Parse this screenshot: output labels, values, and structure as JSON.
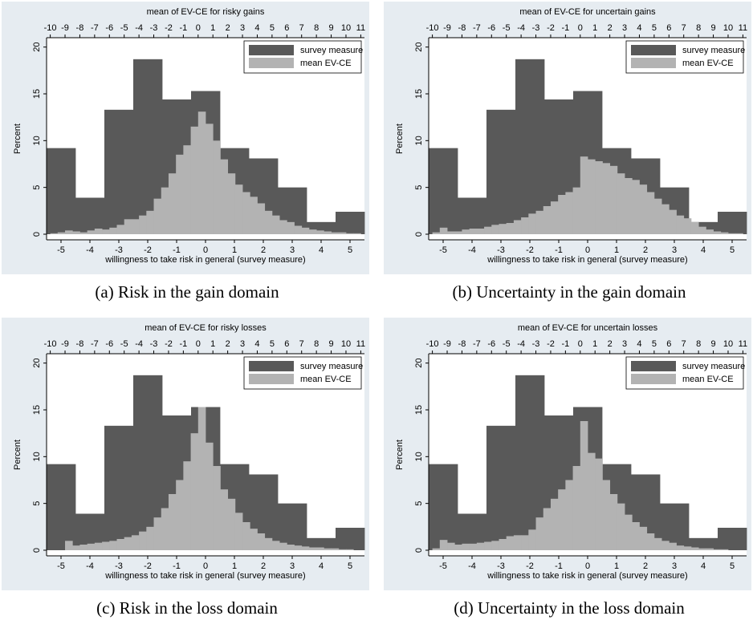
{
  "chart_data": [
    {
      "type": "histogram",
      "caption": "(a) Risk in the gain domain",
      "x2label": "mean of EV-CE for risky gains",
      "xlabel": "willingness to take risk in general (survey measure)",
      "ylabel": "Percent",
      "xlim": [
        -5.5,
        5.5
      ],
      "xticks": [
        -5,
        -4,
        -3,
        -2,
        -1,
        0,
        1,
        2,
        3,
        4,
        5
      ],
      "x2lim": [
        -10.25,
        11.25
      ],
      "x2ticks": [
        -10,
        -9,
        -8,
        -7,
        -6,
        -5,
        -4,
        -3,
        -2,
        -1,
        0,
        1,
        2,
        3,
        4,
        5,
        6,
        7,
        8,
        9,
        10,
        11
      ],
      "ylim": [
        -0.6,
        21
      ],
      "yticks": [
        0,
        5,
        10,
        15,
        20
      ],
      "legend": "top-right",
      "series": [
        {
          "name": "survey measure",
          "color": "#595959",
          "bins": [
            -5.5,
            -4.5,
            -3.5,
            -2.5,
            -1.5,
            -0.5,
            0.5,
            1.5,
            2.5,
            3.5,
            4.5,
            5.5
          ],
          "values": [
            9.2,
            3.9,
            13.3,
            18.7,
            14.4,
            15.3,
            9.2,
            8.1,
            5.0,
            1.3,
            2.4
          ]
        },
        {
          "name": "mean EV-CE",
          "color": "#b3b3b3",
          "axis": "x2",
          "bins": [
            -10,
            -9.5,
            -9,
            -8.5,
            -8,
            -7.5,
            -7,
            -6.5,
            -6,
            -5.5,
            -5,
            -4.5,
            -4,
            -3.5,
            -3,
            -2.5,
            -2,
            -1.5,
            -1,
            -0.5,
            0,
            0.5,
            1,
            1.5,
            2,
            2.5,
            3,
            3.5,
            4,
            4.5,
            5,
            5.5,
            6,
            6.5,
            7,
            7.5,
            8,
            8.5,
            9,
            9.5,
            10,
            10.5,
            11
          ],
          "values": [
            0.1,
            0.2,
            0.4,
            0.3,
            0.2,
            0.4,
            0.6,
            0.5,
            0.7,
            1.0,
            1.6,
            1.6,
            2.0,
            2.5,
            3.8,
            5.0,
            6.5,
            8.5,
            9.5,
            11.5,
            13.1,
            11.8,
            10.0,
            8.0,
            6.5,
            5.3,
            4.5,
            4.0,
            3.3,
            2.5,
            2.0,
            1.5,
            1.3,
            0.9,
            0.7,
            0.5,
            0.4,
            0.3,
            0.2,
            0.2,
            0.1,
            0.1
          ]
        }
      ]
    },
    {
      "type": "histogram",
      "caption": "(b) Uncertainty in the gain domain",
      "x2label": "mean of EV-CE for uncertain gains",
      "xlabel": "willingness to take risk in general (survey measure)",
      "ylabel": "Percent",
      "xlim": [
        -5.5,
        5.5
      ],
      "xticks": [
        -5,
        -4,
        -3,
        -2,
        -1,
        0,
        1,
        2,
        3,
        4,
        5
      ],
      "x2lim": [
        -10.25,
        11.25
      ],
      "x2ticks": [
        -10,
        -9,
        -8,
        -7,
        -6,
        -5,
        -4,
        -3,
        -2,
        -1,
        0,
        1,
        2,
        3,
        4,
        5,
        6,
        7,
        8,
        9,
        10,
        11
      ],
      "ylim": [
        -0.6,
        21
      ],
      "yticks": [
        0,
        5,
        10,
        15,
        20
      ],
      "legend": "top-right",
      "series": [
        {
          "name": "survey measure",
          "color": "#595959",
          "bins": [
            -5.5,
            -4.5,
            -3.5,
            -2.5,
            -1.5,
            -0.5,
            0.5,
            1.5,
            2.5,
            3.5,
            4.5,
            5.5
          ],
          "values": [
            9.2,
            3.9,
            13.3,
            18.7,
            14.4,
            15.3,
            9.2,
            8.1,
            5.0,
            1.3,
            2.4
          ]
        },
        {
          "name": "mean EV-CE",
          "color": "#b3b3b3",
          "axis": "x2",
          "bins": [
            -10,
            -9.5,
            -9,
            -8.5,
            -8,
            -7.5,
            -7,
            -6.5,
            -6,
            -5.5,
            -5,
            -4.5,
            -4,
            -3.5,
            -3,
            -2.5,
            -2,
            -1.5,
            -1,
            -0.5,
            0,
            0.5,
            1,
            1.5,
            2,
            2.5,
            3,
            3.5,
            4,
            4.5,
            5,
            5.5,
            6,
            6.5,
            7,
            7.5,
            8,
            8.5,
            9,
            9.5,
            10,
            10.5,
            11
          ],
          "values": [
            0.2,
            0.7,
            0.3,
            0.3,
            0.5,
            0.6,
            0.6,
            0.8,
            1.0,
            1.1,
            1.2,
            1.5,
            1.8,
            2.2,
            2.5,
            3.0,
            3.5,
            4.2,
            4.5,
            5.0,
            8.3,
            8.0,
            7.8,
            7.6,
            7.3,
            6.5,
            6.0,
            5.8,
            5.3,
            4.5,
            3.8,
            3.2,
            2.6,
            2.0,
            1.7,
            1.3,
            0.8,
            0.5,
            0.3,
            0.2,
            0.1,
            0.1
          ]
        }
      ]
    },
    {
      "type": "histogram",
      "caption": "(c) Risk in the loss domain",
      "x2label": "mean of EV-CE for risky losses",
      "xlabel": "willingness to take risk in general (survey measure)",
      "ylabel": "Percent",
      "xlim": [
        -5.5,
        5.5
      ],
      "xticks": [
        -5,
        -4,
        -3,
        -2,
        -1,
        0,
        1,
        2,
        3,
        4,
        5
      ],
      "x2lim": [
        -10.25,
        11.25
      ],
      "x2ticks": [
        -10,
        -9,
        -8,
        -7,
        -6,
        -5,
        -4,
        -3,
        -2,
        -1,
        0,
        1,
        2,
        3,
        4,
        5,
        6,
        7,
        8,
        9,
        10,
        11
      ],
      "ylim": [
        -0.6,
        21
      ],
      "yticks": [
        0,
        5,
        10,
        15,
        20
      ],
      "legend": "top-right",
      "series": [
        {
          "name": "survey measure",
          "color": "#595959",
          "bins": [
            -5.5,
            -4.5,
            -3.5,
            -2.5,
            -1.5,
            -0.5,
            0.5,
            1.5,
            2.5,
            3.5,
            4.5,
            5.5
          ],
          "values": [
            9.2,
            3.9,
            13.3,
            18.7,
            14.4,
            15.3,
            9.2,
            8.1,
            5.0,
            1.3,
            2.4
          ]
        },
        {
          "name": "mean EV-CE",
          "color": "#b3b3b3",
          "axis": "x2",
          "bins": [
            -10,
            -9.5,
            -9,
            -8.5,
            -8,
            -7.5,
            -7,
            -6.5,
            -6,
            -5.5,
            -5,
            -4.5,
            -4,
            -3.5,
            -3,
            -2.5,
            -2,
            -1.5,
            -1,
            -0.5,
            0,
            0.5,
            1,
            1.5,
            2,
            2.5,
            3,
            3.5,
            4,
            4.5,
            5,
            5.5,
            6,
            6.5,
            7,
            7.5,
            8,
            8.5,
            9,
            9.5,
            10,
            10.5,
            11
          ],
          "values": [
            0,
            0,
            1.0,
            0.5,
            0.6,
            0.7,
            0.8,
            0.9,
            1.0,
            1.2,
            1.4,
            1.6,
            2.0,
            2.5,
            3.5,
            4.5,
            6.0,
            7.5,
            9.5,
            12.5,
            15.3,
            11.5,
            9.0,
            6.5,
            5.5,
            4.0,
            3.0,
            2.3,
            1.8,
            1.3,
            1.0,
            0.8,
            0.6,
            0.5,
            0.4,
            0.3,
            0.3,
            0.2,
            0.2,
            0.1,
            0.1,
            0
          ]
        }
      ]
    },
    {
      "type": "histogram",
      "caption": "(d) Uncertainty in the loss domain",
      "x2label": "mean of EV-CE for uncertain losses",
      "xlabel": "willingness to take risk in general (survey measure)",
      "ylabel": "Percent",
      "xlim": [
        -5.5,
        5.5
      ],
      "xticks": [
        -5,
        -4,
        -3,
        -2,
        -1,
        0,
        1,
        2,
        3,
        4,
        5
      ],
      "x2lim": [
        -10.25,
        11.25
      ],
      "x2ticks": [
        -10,
        -9,
        -8,
        -7,
        -6,
        -5,
        -4,
        -3,
        -2,
        -1,
        0,
        1,
        2,
        3,
        4,
        5,
        6,
        7,
        8,
        9,
        10,
        11
      ],
      "ylim": [
        -0.6,
        21
      ],
      "yticks": [
        0,
        5,
        10,
        15,
        20
      ],
      "legend": "top-right",
      "series": [
        {
          "name": "survey measure",
          "color": "#595959",
          "bins": [
            -5.5,
            -4.5,
            -3.5,
            -2.5,
            -1.5,
            -0.5,
            0.5,
            1.5,
            2.5,
            3.5,
            4.5,
            5.5
          ],
          "values": [
            9.2,
            3.9,
            13.3,
            18.7,
            14.4,
            15.3,
            9.2,
            8.1,
            5.0,
            1.3,
            2.4
          ]
        },
        {
          "name": "mean EV-CE",
          "color": "#b3b3b3",
          "axis": "x2",
          "bins": [
            -10,
            -9.5,
            -9,
            -8.5,
            -8,
            -7.5,
            -7,
            -6.5,
            -6,
            -5.5,
            -5,
            -4.5,
            -4,
            -3.5,
            -3,
            -2.5,
            -2,
            -1.5,
            -1,
            -0.5,
            0,
            0.5,
            1,
            1.5,
            2,
            2.5,
            3,
            3.5,
            4,
            4.5,
            5,
            5.5,
            6,
            6.5,
            7,
            7.5,
            8,
            8.5,
            9,
            9.5,
            10,
            10.5,
            11
          ],
          "values": [
            0.2,
            1.1,
            0.8,
            0.6,
            0.7,
            0.7,
            0.8,
            0.9,
            1.0,
            1.2,
            1.5,
            1.6,
            1.6,
            2.2,
            3.5,
            4.5,
            5.5,
            6.5,
            7.5,
            9.0,
            13.8,
            10.4,
            9.8,
            7.5,
            6.0,
            5.0,
            3.8,
            3.0,
            2.5,
            1.8,
            1.3,
            1.0,
            0.8,
            0.5,
            0.4,
            0.3,
            0.2,
            0.2,
            0.1,
            0.1,
            0,
            0
          ]
        }
      ]
    }
  ]
}
